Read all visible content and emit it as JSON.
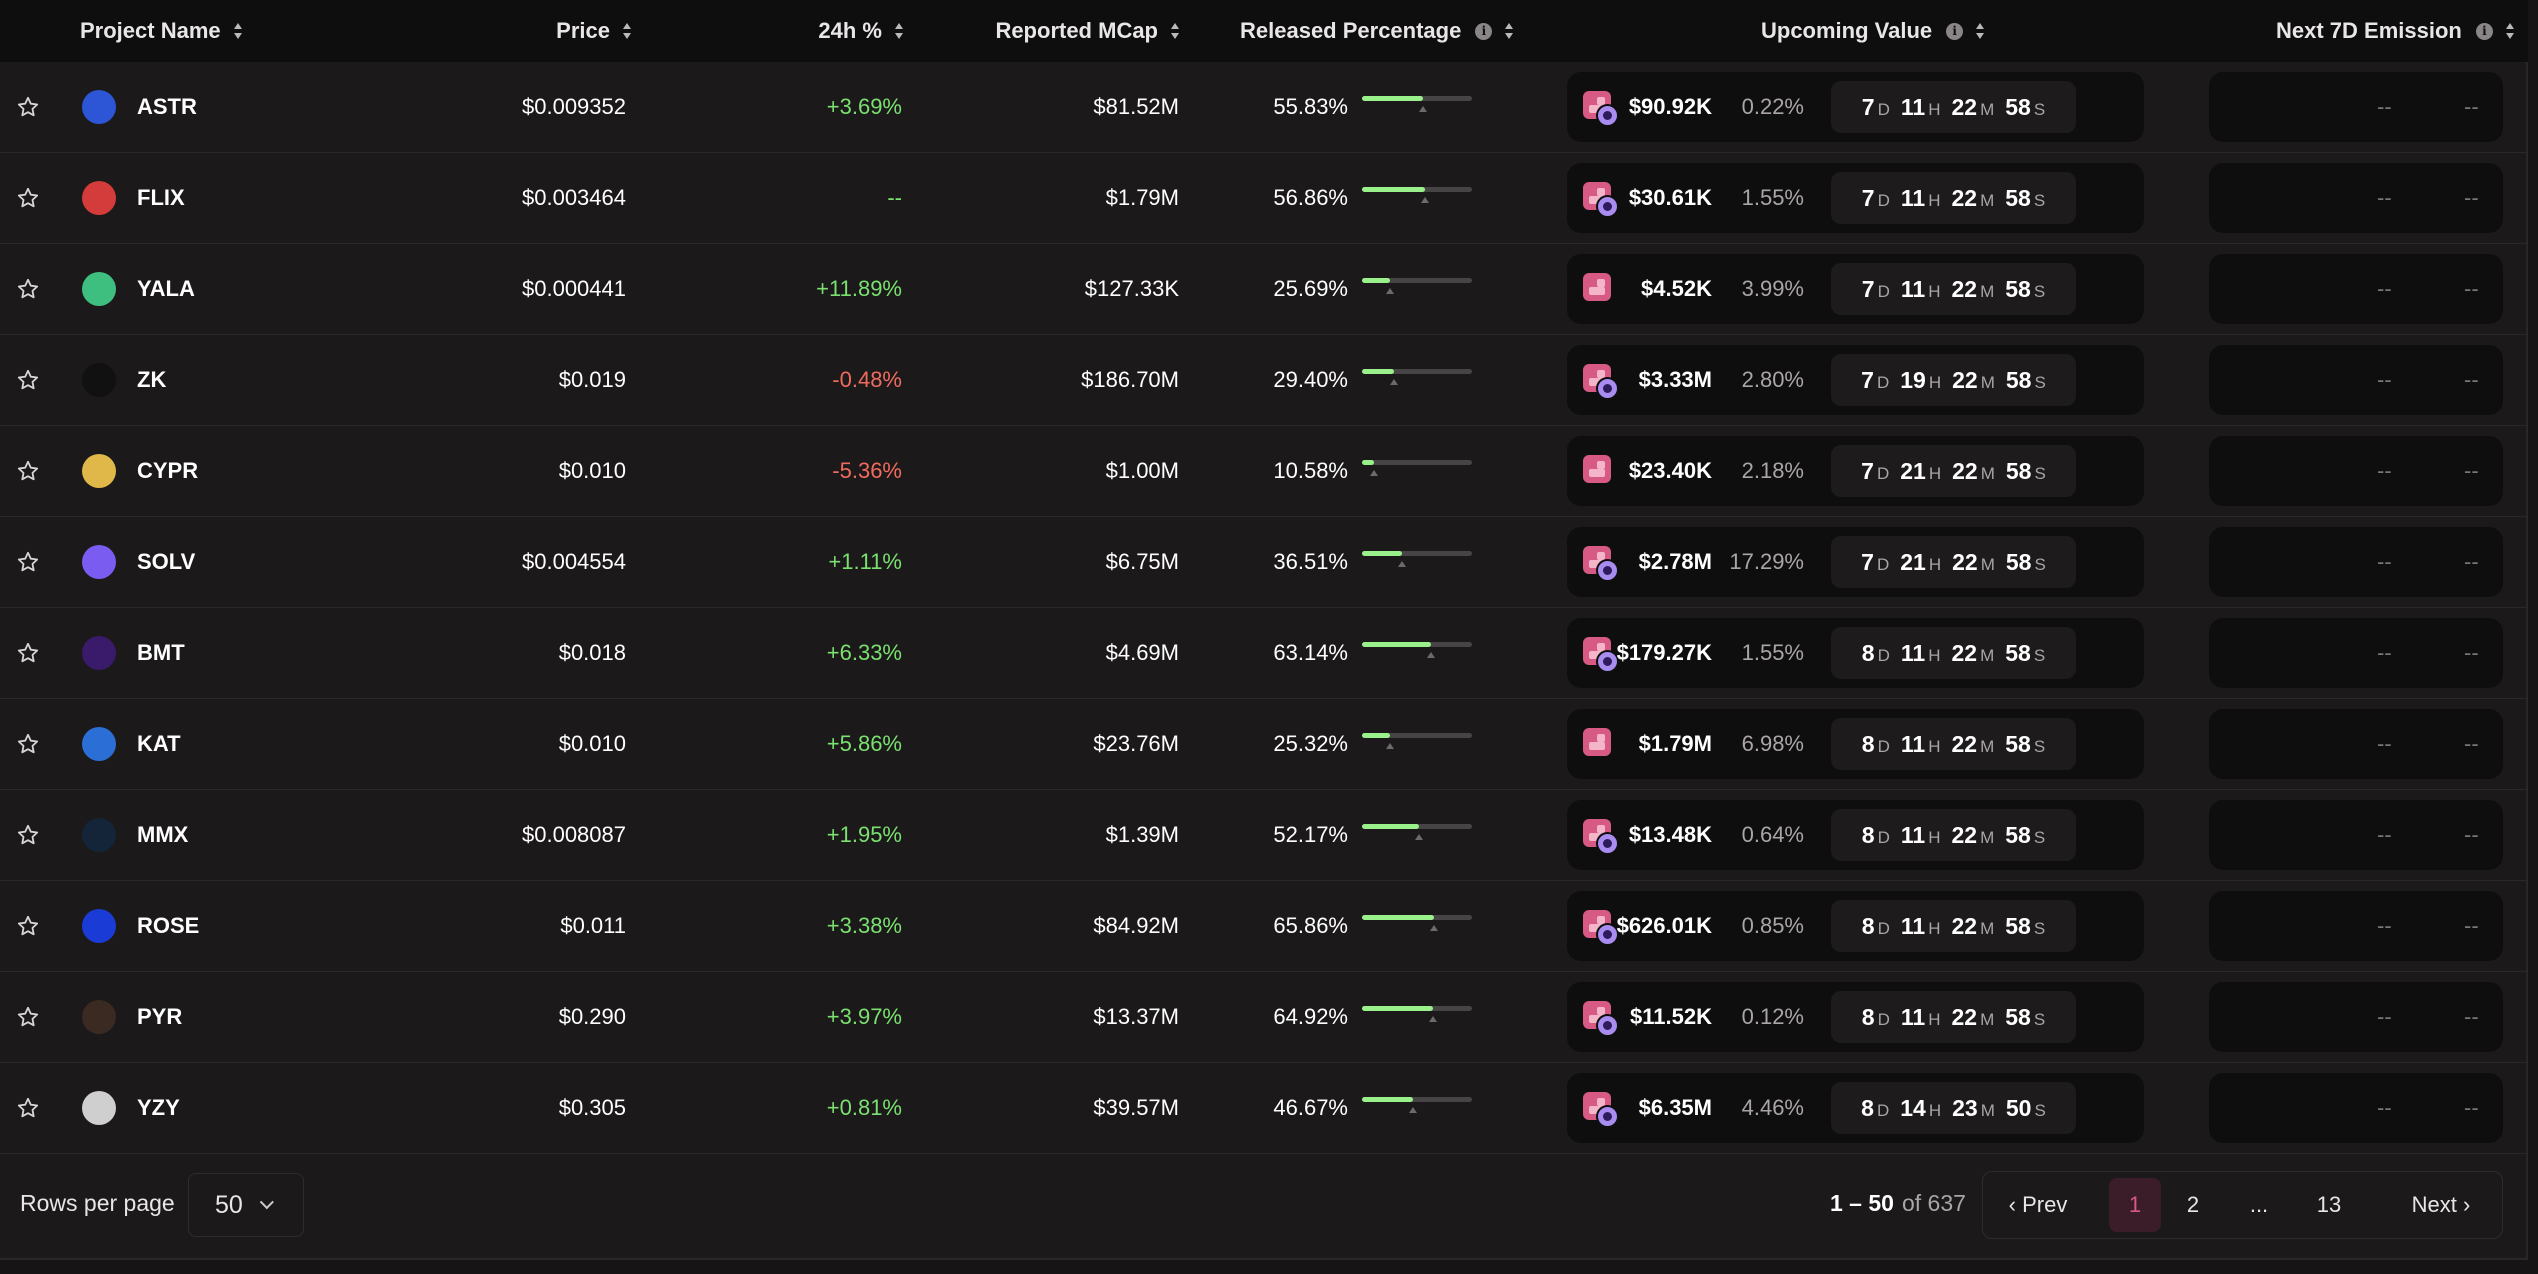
{
  "columns": {
    "project": "Project Name",
    "price": "Price",
    "change": "24h %",
    "mcap": "Reported MCap",
    "released": "Released Percentage",
    "upcoming": "Upcoming Value",
    "emission": "Next 7D Emission"
  },
  "colors": {
    "positive": "#7ae06f",
    "negative": "#f06b5e",
    "accent": "#d65a84",
    "progress": "#9af08b"
  },
  "rows": [
    {
      "symbol": "ASTR",
      "logo_color": "#2c56d6",
      "price": "$0.009352",
      "change": "+3.69%",
      "trend": "pos",
      "mcap": "$81.52M",
      "released": "55.83%",
      "released_fraction": 0.5583,
      "upcoming_value": "$90.92K",
      "upcoming_pct": "0.22%",
      "icon": "unlock-plus",
      "cd": [
        "7",
        "11",
        "22",
        "58"
      ],
      "emission": [
        "--",
        "--"
      ]
    },
    {
      "symbol": "FLIX",
      "logo_color": "#d43b3b",
      "price": "$0.003464",
      "change": "--",
      "trend": "neu",
      "mcap": "$1.79M",
      "released": "56.86%",
      "released_fraction": 0.5686,
      "upcoming_value": "$30.61K",
      "upcoming_pct": "1.55%",
      "icon": "unlock-plus",
      "cd": [
        "7",
        "11",
        "22",
        "58"
      ],
      "emission": [
        "--",
        "--"
      ]
    },
    {
      "symbol": "YALA",
      "logo_color": "#3fbf7f",
      "price": "$0.000441",
      "change": "+11.89%",
      "trend": "pos",
      "mcap": "$127.33K",
      "released": "25.69%",
      "released_fraction": 0.2569,
      "upcoming_value": "$4.52K",
      "upcoming_pct": "3.99%",
      "icon": "unlock",
      "cd": [
        "7",
        "11",
        "22",
        "58"
      ],
      "emission": [
        "--",
        "--"
      ]
    },
    {
      "symbol": "ZK",
      "logo_color": "#111111",
      "price": "$0.019",
      "change": "-0.48%",
      "trend": "neg",
      "mcap": "$186.70M",
      "released": "29.40%",
      "released_fraction": 0.294,
      "upcoming_value": "$3.33M",
      "upcoming_pct": "2.80%",
      "icon": "unlock-plus",
      "cd": [
        "7",
        "19",
        "22",
        "58"
      ],
      "emission": [
        "--",
        "--"
      ]
    },
    {
      "symbol": "CYPR",
      "logo_color": "#e0b84a",
      "price": "$0.010",
      "change": "-5.36%",
      "trend": "neg",
      "mcap": "$1.00M",
      "released": "10.58%",
      "released_fraction": 0.1058,
      "upcoming_value": "$23.40K",
      "upcoming_pct": "2.18%",
      "icon": "unlock",
      "cd": [
        "7",
        "21",
        "22",
        "58"
      ],
      "emission": [
        "--",
        "--"
      ]
    },
    {
      "symbol": "SOLV",
      "logo_color": "#7b5cf0",
      "price": "$0.004554",
      "change": "+1.11%",
      "trend": "pos",
      "mcap": "$6.75M",
      "released": "36.51%",
      "released_fraction": 0.3651,
      "upcoming_value": "$2.78M",
      "upcoming_pct": "17.29%",
      "icon": "unlock-plus",
      "cd": [
        "7",
        "21",
        "22",
        "58"
      ],
      "emission": [
        "--",
        "--"
      ]
    },
    {
      "symbol": "BMT",
      "logo_color": "#3a1a6b",
      "price": "$0.018",
      "change": "+6.33%",
      "trend": "pos",
      "mcap": "$4.69M",
      "released": "63.14%",
      "released_fraction": 0.6314,
      "upcoming_value": "$179.27K",
      "upcoming_pct": "1.55%",
      "icon": "unlock-plus",
      "cd": [
        "8",
        "11",
        "22",
        "58"
      ],
      "emission": [
        "--",
        "--"
      ]
    },
    {
      "symbol": "KAT",
      "logo_color": "#2b6fd6",
      "price": "$0.010",
      "change": "+5.86%",
      "trend": "pos",
      "mcap": "$23.76M",
      "released": "25.32%",
      "released_fraction": 0.2532,
      "upcoming_value": "$1.79M",
      "upcoming_pct": "6.98%",
      "icon": "unlock",
      "cd": [
        "8",
        "11",
        "22",
        "58"
      ],
      "emission": [
        "--",
        "--"
      ]
    },
    {
      "symbol": "MMX",
      "logo_color": "#14253a",
      "price": "$0.008087",
      "change": "+1.95%",
      "trend": "pos",
      "mcap": "$1.39M",
      "released": "52.17%",
      "released_fraction": 0.5217,
      "upcoming_value": "$13.48K",
      "upcoming_pct": "0.64%",
      "icon": "unlock-plus",
      "cd": [
        "8",
        "11",
        "22",
        "58"
      ],
      "emission": [
        "--",
        "--"
      ]
    },
    {
      "symbol": "ROSE",
      "logo_color": "#1b3bd6",
      "price": "$0.011",
      "change": "+3.38%",
      "trend": "pos",
      "mcap": "$84.92M",
      "released": "65.86%",
      "released_fraction": 0.6586,
      "upcoming_value": "$626.01K",
      "upcoming_pct": "0.85%",
      "icon": "unlock-plus",
      "cd": [
        "8",
        "11",
        "22",
        "58"
      ],
      "emission": [
        "--",
        "--"
      ]
    },
    {
      "symbol": "PYR",
      "logo_color": "#3a2a22",
      "price": "$0.290",
      "change": "+3.97%",
      "trend": "pos",
      "mcap": "$13.37M",
      "released": "64.92%",
      "released_fraction": 0.6492,
      "upcoming_value": "$11.52K",
      "upcoming_pct": "0.12%",
      "icon": "unlock-plus",
      "cd": [
        "8",
        "11",
        "22",
        "58"
      ],
      "emission": [
        "--",
        "--"
      ]
    },
    {
      "symbol": "YZY",
      "logo_color": "#cfcfcf",
      "price": "$0.305",
      "change": "+0.81%",
      "trend": "pos",
      "mcap": "$39.57M",
      "released": "46.67%",
      "released_fraction": 0.4667,
      "upcoming_value": "$6.35M",
      "upcoming_pct": "4.46%",
      "icon": "unlock-plus",
      "cd": [
        "8",
        "14",
        "23",
        "50"
      ],
      "emission": [
        "--",
        "--"
      ]
    }
  ],
  "countdown_units": {
    "d": "D",
    "h": "H",
    "m": "M",
    "s": "S"
  },
  "footer": {
    "rows_per_page_label": "Rows per page",
    "rows_per_page_value": "50",
    "range": "1 – 50",
    "of_total": "of 637",
    "prev": "‹ Prev",
    "next": "Next ›",
    "pages": [
      "1",
      "2",
      "...",
      "13"
    ]
  }
}
